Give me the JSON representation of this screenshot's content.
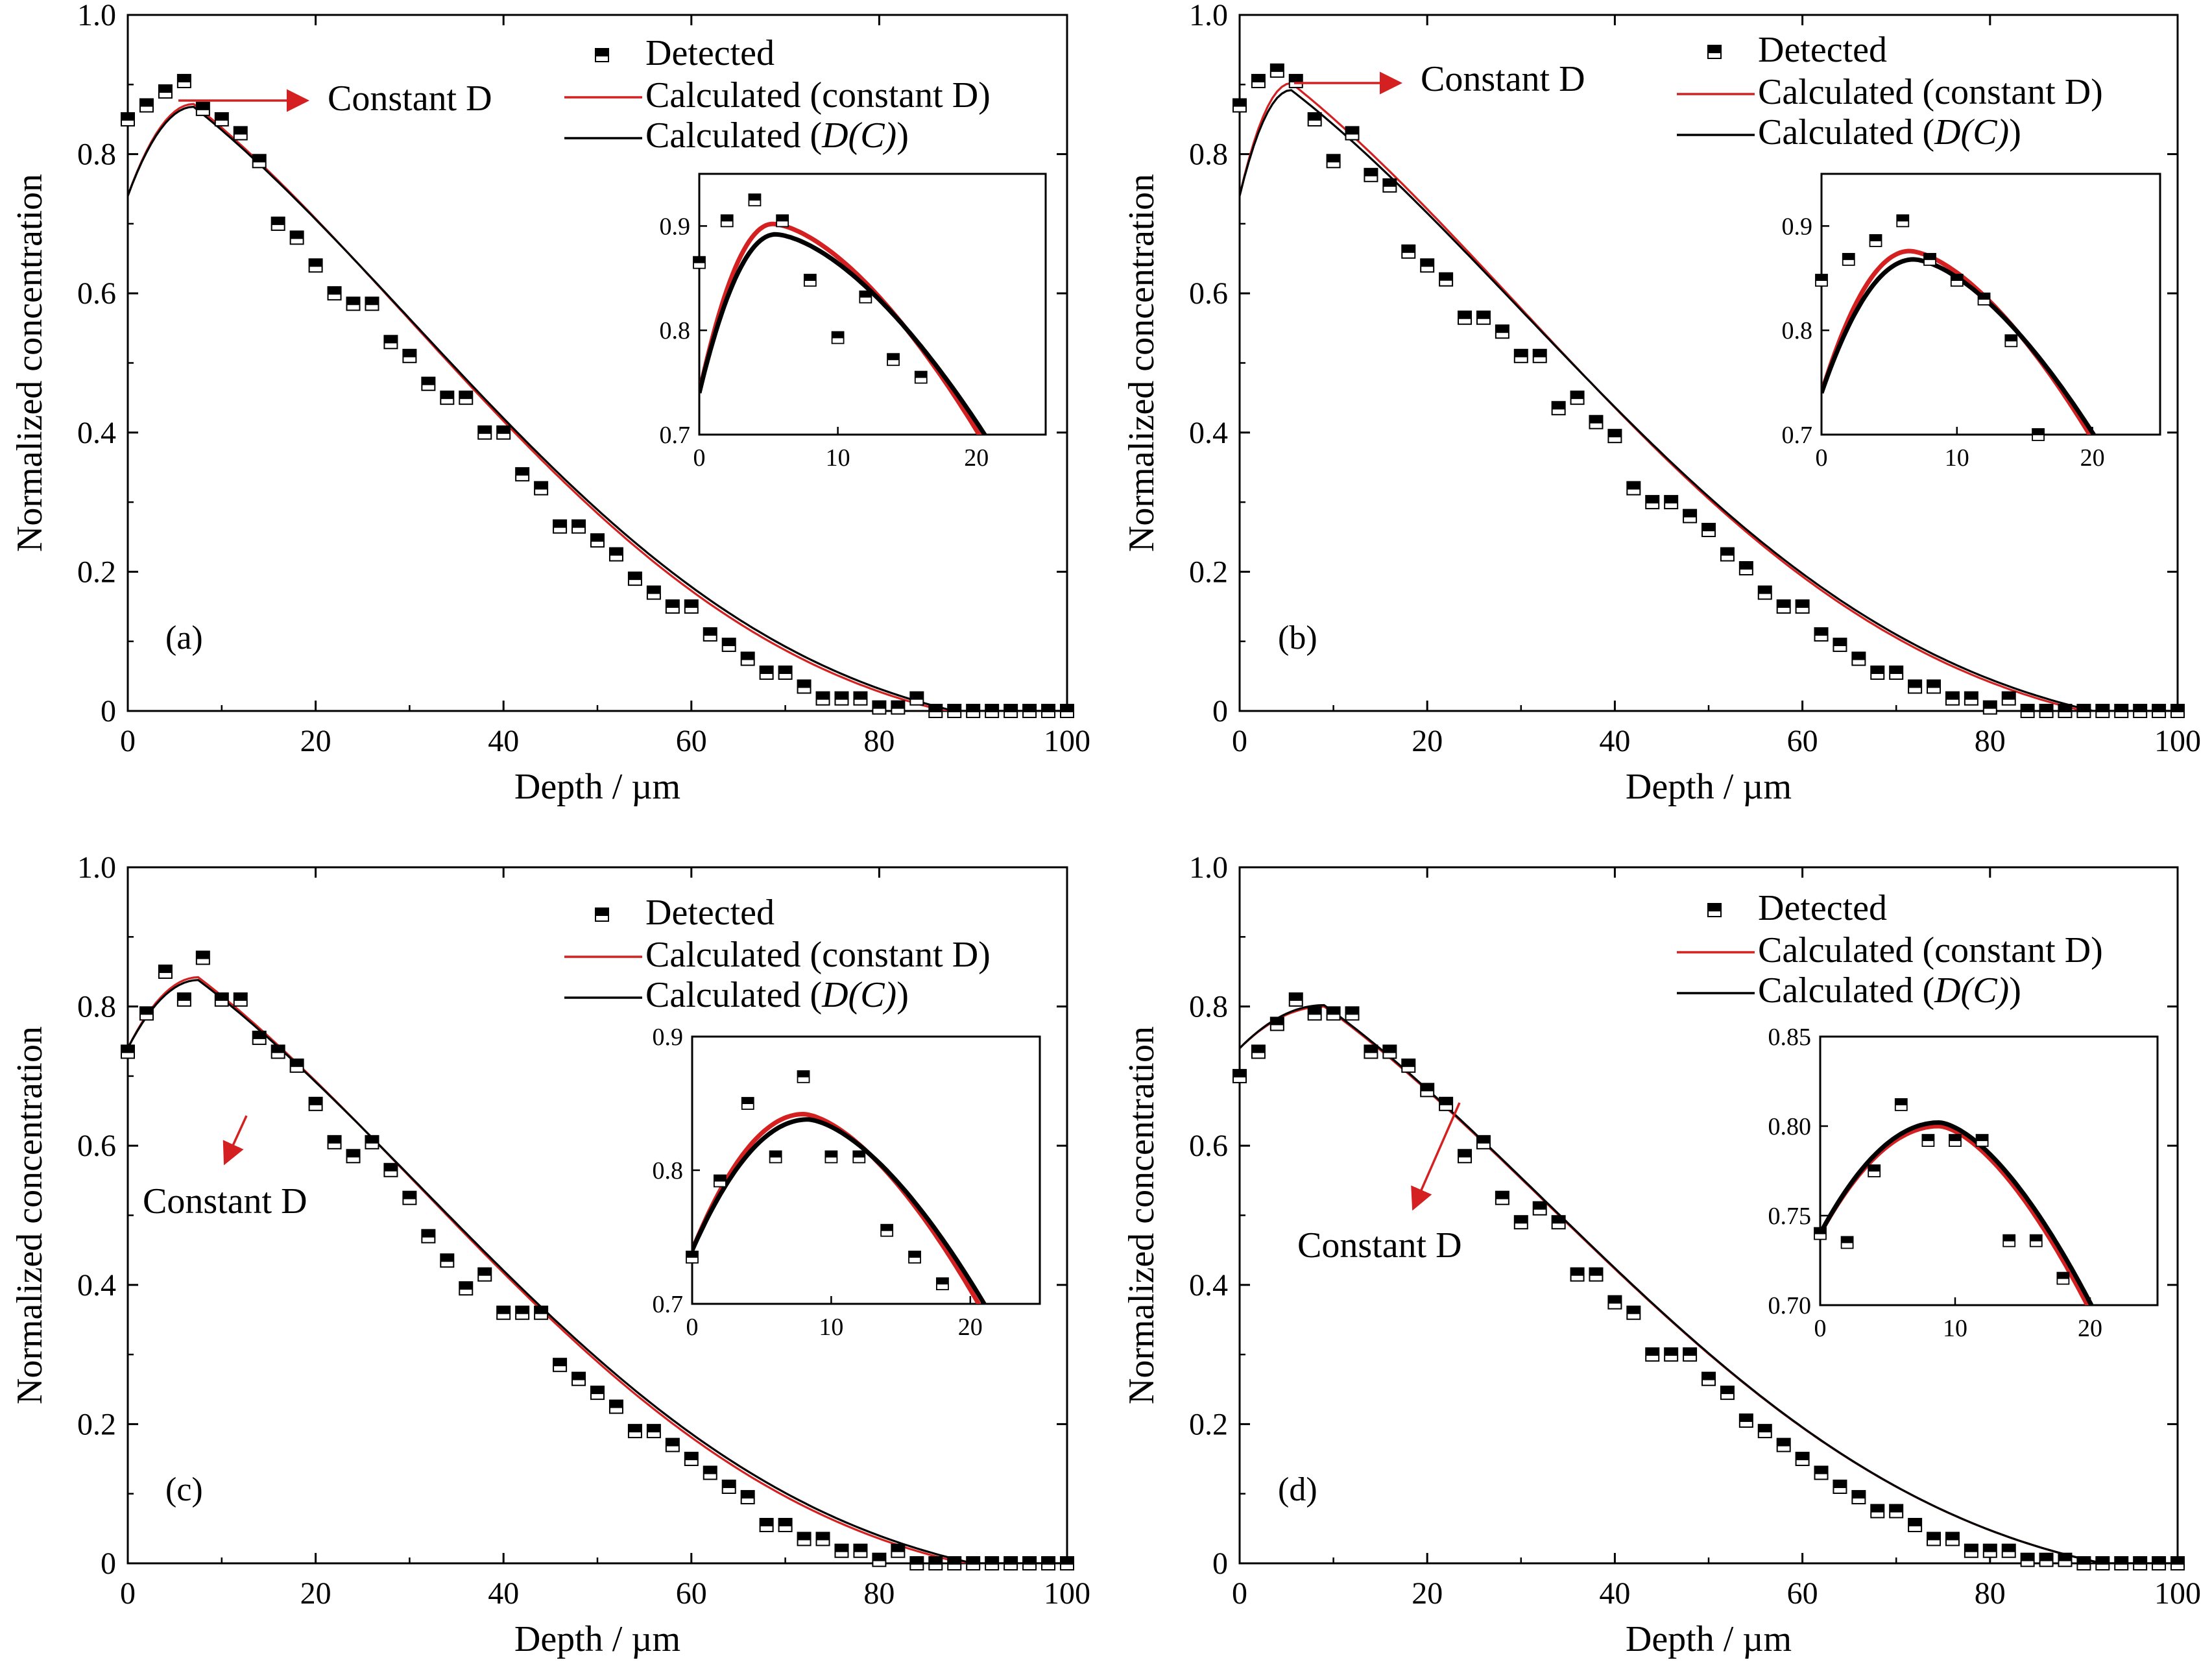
{
  "colors": {
    "constant": "#d42020",
    "dc": "#000000",
    "marker_fill": "#000000"
  },
  "legend": {
    "detected": "Detected",
    "constant_prefix": "Calculated (constant D)",
    "dc_prefix": "Calculated (",
    "dc_italic": "D(C)",
    "dc_suffix": ")"
  },
  "xlabel": "Depth / µm",
  "ylabel": "Normalized concentration",
  "chart_data": [
    {
      "panel": "(a)",
      "type": "scatter",
      "xlim": [
        0,
        100
      ],
      "ylim": [
        0,
        1.0
      ],
      "xticks": [
        "0",
        "20",
        "40",
        "60",
        "80",
        "100"
      ],
      "yticks": [
        "0",
        "0.2",
        "0.4",
        "0.6",
        "0.8",
        "1.0"
      ],
      "annotation": "Constant D",
      "series": [
        {
          "name": "Detected",
          "x": [
            0,
            2,
            4,
            6,
            8,
            10,
            12,
            14,
            16,
            18,
            20,
            22,
            24,
            26,
            28,
            30,
            32,
            34,
            36,
            38,
            40,
            42,
            44,
            46,
            48,
            50,
            52,
            54,
            56,
            58,
            60,
            62,
            64,
            66,
            68,
            70,
            72,
            74,
            76,
            78,
            80,
            82,
            84,
            86,
            88,
            90,
            92,
            94,
            96,
            98,
            100
          ],
          "y": [
            0.85,
            0.87,
            0.89,
            0.905,
            0.865,
            0.85,
            0.83,
            0.79,
            0.7,
            0.68,
            0.64,
            0.6,
            0.585,
            0.585,
            0.53,
            0.51,
            0.47,
            0.45,
            0.45,
            0.4,
            0.4,
            0.34,
            0.32,
            0.265,
            0.265,
            0.245,
            0.225,
            0.19,
            0.17,
            0.15,
            0.15,
            0.11,
            0.095,
            0.075,
            0.055,
            0.055,
            0.035,
            0.018,
            0.018,
            0.018,
            0.005,
            0.005,
            0.018,
            0,
            0,
            0,
            0,
            0,
            0,
            0,
            0
          ]
        },
        {
          "name": "Calculated (constant D)",
          "params": {
            "c0": 0.74,
            "peak": 0.872,
            "xpeak": 7,
            "xend": 87
          }
        },
        {
          "name": "Calculated (D(C))",
          "params": {
            "c0": 0.74,
            "peak": 0.868,
            "xpeak": 7,
            "xend": 88
          }
        }
      ],
      "inset": {
        "xlim": [
          0,
          25
        ],
        "ylim": [
          0.7,
          0.95
        ],
        "xticks": [
          "0",
          "10",
          "20"
        ],
        "yticks": [
          "0.7",
          "0.8",
          "0.9"
        ],
        "detected": {
          "x": [
            0,
            2,
            4,
            6,
            8,
            10,
            12,
            14,
            16
          ],
          "y": [
            0.865,
            0.905,
            0.925,
            0.905,
            0.848,
            0.793,
            0.832,
            0.772,
            0.755
          ]
        },
        "constant": {
          "c0": 0.74,
          "peak": 0.902,
          "xpeak": 5.3,
          "x_at_end": 20.2
        },
        "dc": {
          "c0": 0.74,
          "peak": 0.892,
          "xpeak": 5.5,
          "x_at_end": 20.6
        }
      }
    },
    {
      "panel": "(b)",
      "type": "scatter",
      "xlim": [
        0,
        100
      ],
      "ylim": [
        0,
        1.0
      ],
      "xticks": [
        "0",
        "20",
        "40",
        "60",
        "80",
        "100"
      ],
      "yticks": [
        "0",
        "0.2",
        "0.4",
        "0.6",
        "0.8",
        "1.0"
      ],
      "annotation": "Constant D",
      "series": [
        {
          "name": "Detected",
          "x": [
            0,
            2,
            4,
            6,
            8,
            10,
            12,
            14,
            16,
            18,
            20,
            22,
            24,
            26,
            28,
            30,
            32,
            34,
            36,
            38,
            40,
            42,
            44,
            46,
            48,
            50,
            52,
            54,
            56,
            58,
            60,
            62,
            64,
            66,
            68,
            70,
            72,
            74,
            76,
            78,
            80,
            82,
            84,
            86,
            88,
            90,
            92,
            94,
            96,
            98,
            100
          ],
          "y": [
            0.87,
            0.905,
            0.92,
            0.905,
            0.85,
            0.79,
            0.83,
            0.77,
            0.755,
            0.66,
            0.64,
            0.62,
            0.565,
            0.565,
            0.545,
            0.51,
            0.51,
            0.435,
            0.45,
            0.415,
            0.395,
            0.32,
            0.3,
            0.3,
            0.28,
            0.26,
            0.225,
            0.205,
            0.17,
            0.15,
            0.15,
            0.11,
            0.095,
            0.075,
            0.055,
            0.055,
            0.035,
            0.035,
            0.018,
            0.018,
            0.005,
            0.018,
            0,
            0,
            0,
            0,
            0,
            0,
            0,
            0,
            0
          ]
        },
        {
          "name": "Calculated (constant D)",
          "params": {
            "c0": 0.74,
            "peak": 0.902,
            "xpeak": 5.5,
            "xend": 90
          }
        },
        {
          "name": "Calculated (D(C))",
          "params": {
            "c0": 0.74,
            "peak": 0.892,
            "xpeak": 5.5,
            "xend": 91
          }
        }
      ],
      "inset": {
        "xlim": [
          0,
          25
        ],
        "ylim": [
          0.7,
          0.95
        ],
        "xticks": [
          "0",
          "10",
          "20"
        ],
        "yticks": [
          "0.7",
          "0.8",
          "0.9"
        ],
        "detected": {
          "x": [
            0,
            2,
            4,
            6,
            8,
            10,
            12,
            14,
            16
          ],
          "y": [
            0.848,
            0.868,
            0.886,
            0.905,
            0.868,
            0.848,
            0.83,
            0.79,
            0.7
          ]
        },
        "constant": {
          "c0": 0.74,
          "peak": 0.876,
          "xpeak": 6.5,
          "x_at_end": 19.8
        },
        "dc": {
          "c0": 0.74,
          "peak": 0.868,
          "xpeak": 6.8,
          "x_at_end": 20.1
        }
      }
    },
    {
      "panel": "(c)",
      "type": "scatter",
      "xlim": [
        0,
        100
      ],
      "ylim": [
        0,
        1.0
      ],
      "xticks": [
        "0",
        "20",
        "40",
        "60",
        "80",
        "100"
      ],
      "yticks": [
        "0",
        "0.2",
        "0.4",
        "0.6",
        "0.8",
        "1.0"
      ],
      "annotation": "Constant D",
      "series": [
        {
          "name": "Detected",
          "x": [
            0,
            2,
            4,
            6,
            8,
            10,
            12,
            14,
            16,
            18,
            20,
            22,
            24,
            26,
            28,
            30,
            32,
            34,
            36,
            38,
            40,
            42,
            44,
            46,
            48,
            50,
            52,
            54,
            56,
            58,
            60,
            62,
            64,
            66,
            68,
            70,
            72,
            74,
            76,
            78,
            80,
            82,
            84,
            86,
            88,
            90,
            92,
            94,
            96,
            98,
            100
          ],
          "y": [
            0.735,
            0.79,
            0.85,
            0.81,
            0.87,
            0.81,
            0.81,
            0.755,
            0.735,
            0.715,
            0.66,
            0.605,
            0.585,
            0.605,
            0.565,
            0.525,
            0.47,
            0.435,
            0.395,
            0.415,
            0.36,
            0.36,
            0.36,
            0.285,
            0.265,
            0.245,
            0.225,
            0.19,
            0.19,
            0.17,
            0.15,
            0.13,
            0.11,
            0.095,
            0.055,
            0.055,
            0.035,
            0.035,
            0.018,
            0.018,
            0.005,
            0.018,
            0,
            0,
            0,
            0,
            0,
            0,
            0,
            0,
            0
          ]
        },
        {
          "name": "Calculated (constant D)",
          "params": {
            "c0": 0.74,
            "peak": 0.842,
            "xpeak": 7.5,
            "xend": 89
          }
        },
        {
          "name": "Calculated (D(C))",
          "params": {
            "c0": 0.74,
            "peak": 0.838,
            "xpeak": 7.5,
            "xend": 90
          }
        }
      ],
      "inset": {
        "xlim": [
          0,
          25
        ],
        "ylim": [
          0.7,
          0.9
        ],
        "xticks": [
          "0",
          "10",
          "20"
        ],
        "yticks": [
          "0.7",
          "0.8",
          "0.9"
        ],
        "detected": {
          "x": [
            0,
            2,
            4,
            6,
            8,
            10,
            12,
            14,
            16,
            18
          ],
          "y": [
            0.735,
            0.792,
            0.85,
            0.81,
            0.87,
            0.81,
            0.81,
            0.755,
            0.735,
            0.715
          ]
        },
        "constant": {
          "c0": 0.74,
          "peak": 0.842,
          "xpeak": 8.0,
          "x_at_end": 20.6
        },
        "dc": {
          "c0": 0.74,
          "peak": 0.838,
          "xpeak": 8.3,
          "x_at_end": 21.0
        }
      }
    },
    {
      "panel": "(d)",
      "type": "scatter",
      "xlim": [
        0,
        100
      ],
      "ylim": [
        0,
        1.0
      ],
      "xticks": [
        "0",
        "20",
        "40",
        "60",
        "80",
        "100"
      ],
      "yticks": [
        "0",
        "0.2",
        "0.4",
        "0.6",
        "0.8",
        "1.0"
      ],
      "annotation": "Constant D",
      "series": [
        {
          "name": "Detected",
          "x": [
            0,
            2,
            4,
            6,
            8,
            10,
            12,
            14,
            16,
            18,
            20,
            22,
            24,
            26,
            28,
            30,
            32,
            34,
            36,
            38,
            40,
            42,
            44,
            46,
            48,
            50,
            52,
            54,
            56,
            58,
            60,
            62,
            64,
            66,
            68,
            70,
            72,
            74,
            76,
            78,
            80,
            82,
            84,
            86,
            88,
            90,
            92,
            94,
            96,
            98,
            100
          ],
          "y": [
            0.7,
            0.735,
            0.775,
            0.81,
            0.79,
            0.79,
            0.79,
            0.735,
            0.735,
            0.715,
            0.68,
            0.66,
            0.585,
            0.605,
            0.525,
            0.49,
            0.51,
            0.49,
            0.415,
            0.415,
            0.375,
            0.36,
            0.3,
            0.3,
            0.3,
            0.265,
            0.245,
            0.205,
            0.19,
            0.17,
            0.15,
            0.13,
            0.11,
            0.095,
            0.075,
            0.075,
            0.055,
            0.035,
            0.035,
            0.018,
            0.018,
            0.018,
            0.005,
            0.005,
            0.005,
            0,
            0,
            0,
            0,
            0,
            0
          ]
        },
        {
          "name": "Calculated (constant D)",
          "params": {
            "c0": 0.74,
            "peak": 0.8,
            "xpeak": 9,
            "xend": 92
          }
        },
        {
          "name": "Calculated (D(C))",
          "params": {
            "c0": 0.74,
            "peak": 0.802,
            "xpeak": 9,
            "xend": 92
          }
        }
      ],
      "inset": {
        "xlim": [
          0,
          25
        ],
        "ylim": [
          0.7,
          0.85
        ],
        "xticks": [
          "0",
          "10",
          "20"
        ],
        "yticks": [
          "0.70",
          "0.75",
          "0.80",
          "0.85"
        ],
        "detected": {
          "x": [
            0,
            2,
            4,
            6,
            8,
            10,
            12,
            14,
            16,
            18
          ],
          "y": [
            0.74,
            0.735,
            0.775,
            0.812,
            0.792,
            0.792,
            0.792,
            0.736,
            0.736,
            0.715
          ]
        },
        "constant": {
          "c0": 0.74,
          "peak": 0.8,
          "xpeak": 8.8,
          "x_at_end": 19.8
        },
        "dc": {
          "c0": 0.74,
          "peak": 0.802,
          "xpeak": 8.8,
          "x_at_end": 20.1
        }
      }
    }
  ]
}
